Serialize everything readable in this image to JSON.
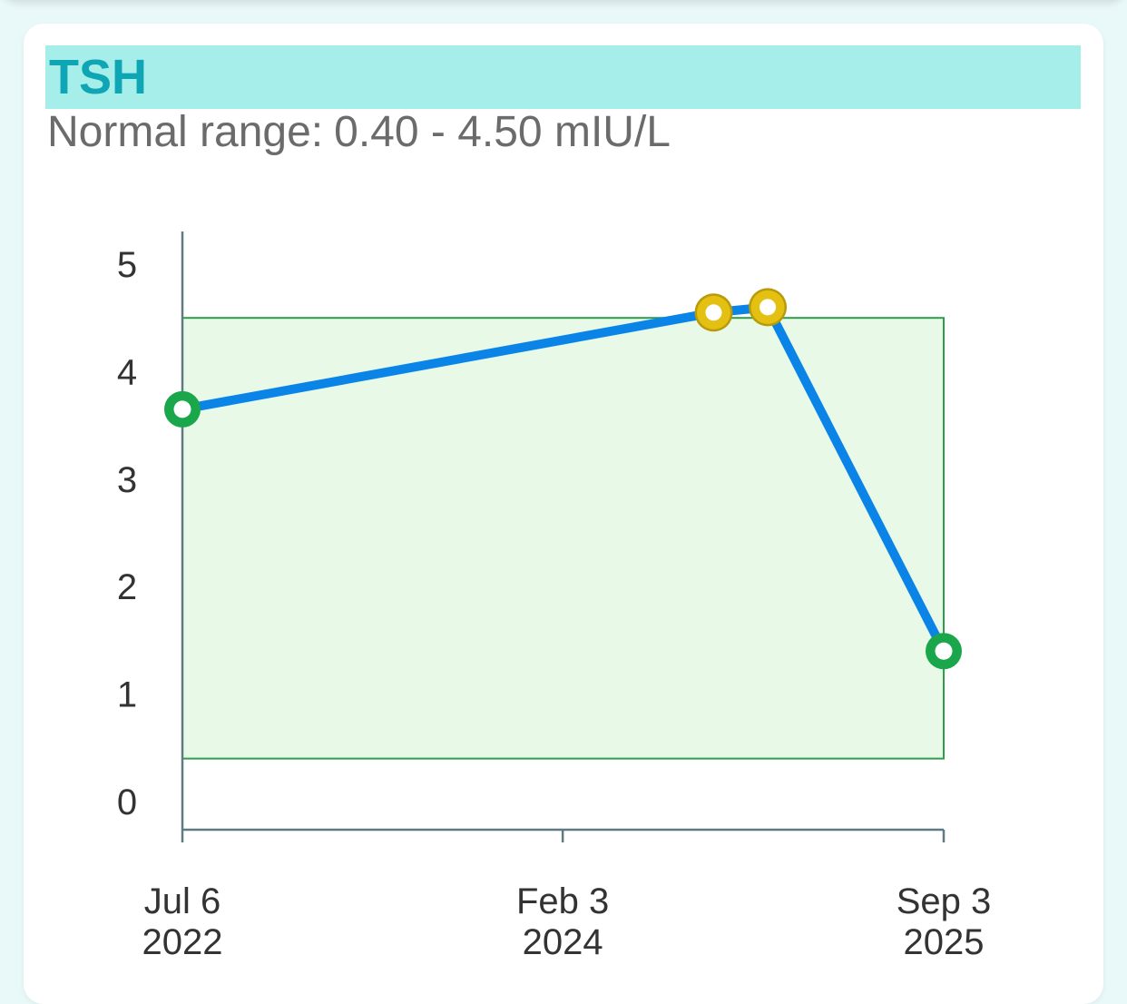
{
  "card": {
    "title": "TSH",
    "range_prefix": "Normal range:",
    "range_value": "0.40 - 4.50 mIU/L"
  },
  "chart_data": {
    "type": "line",
    "x": [
      "2022-07-06",
      "2024-09-19",
      "2024-12-10",
      "2025-09-03"
    ],
    "series": [
      {
        "values": [
          3.65,
          4.55,
          4.6,
          1.4
        ],
        "color": "#0b84e8",
        "point_status": [
          "normal",
          "high",
          "high",
          "normal"
        ]
      }
    ],
    "normal_range": [
      0.4,
      4.5
    ],
    "ylim": [
      0,
      5
    ],
    "yticks": [
      "0",
      "1",
      "2",
      "3",
      "4",
      "5"
    ],
    "xticks": [
      {
        "line1": "Jul 6",
        "line2": "2022",
        "date": "2022-07-06"
      },
      {
        "line1": "Feb 3",
        "line2": "2024",
        "date": "2024-02-03"
      },
      {
        "line1": "Sep 3",
        "line2": "2025",
        "date": "2025-09-03"
      }
    ],
    "xlim": [
      "2022-07-06",
      "2025-09-03"
    ],
    "colors": {
      "line": "#0b84e8",
      "normal_point": "#1aa64a",
      "high_point": "#e3c012",
      "high_point_edge": "#b89a0a",
      "range_fill": "#e8f9e8",
      "range_stroke": "#2e9e4b",
      "axis": "#5f7a82"
    }
  }
}
